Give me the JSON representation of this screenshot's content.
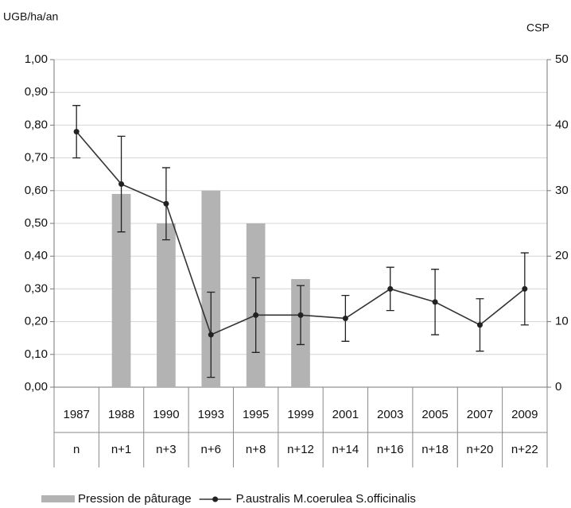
{
  "chart_data": {
    "type": "bar-line",
    "y_label": "UGB/ha/an",
    "y2_label": "CSP",
    "categories": [
      "1987",
      "1988",
      "1990",
      "1993",
      "1995",
      "1999",
      "2001",
      "2003",
      "2005",
      "2007",
      "2009"
    ],
    "periods": [
      "n",
      "n+1",
      "n+3",
      "n+6",
      "n+8",
      "n+12",
      "n+14",
      "n+16",
      "n+18",
      "n+20",
      "n+22"
    ],
    "series": [
      {
        "name": "Pression de pâturage",
        "type": "bar",
        "color": "#b3b3b3",
        "values": [
          null,
          0.59,
          0.5,
          0.6,
          0.5,
          0.33,
          null,
          null,
          null,
          null,
          null
        ]
      },
      {
        "name": "P.australis  M.coerulea  S.officinalis",
        "type": "line",
        "axis": "y2",
        "color": "#333333",
        "values": [
          39,
          31,
          28,
          8,
          11,
          11,
          10.5,
          15,
          13,
          9.5,
          15
        ],
        "errors": [
          4,
          7.3,
          5.5,
          6.5,
          5.7,
          4.5,
          3.5,
          3.3,
          5,
          4,
          5.5
        ]
      }
    ],
    "ylim": [
      0,
      1
    ],
    "yticks": [
      {
        "value": 0,
        "label": "0,00"
      },
      {
        "value": 0.1,
        "label": "0,10"
      },
      {
        "value": 0.2,
        "label": "0,20"
      },
      {
        "value": 0.3,
        "label": "0,30"
      },
      {
        "value": 0.4,
        "label": "0,40"
      },
      {
        "value": 0.5,
        "label": "0,50"
      },
      {
        "value": 0.6,
        "label": "0,60"
      },
      {
        "value": 0.7,
        "label": "0,70"
      },
      {
        "value": 0.8,
        "label": "0,80"
      },
      {
        "value": 0.9,
        "label": "0,90"
      },
      {
        "value": 1,
        "label": "1,00"
      }
    ],
    "y2lim": [
      0,
      50
    ],
    "y2ticks": [
      0,
      10,
      20,
      30,
      40,
      50
    ],
    "grid": true
  }
}
